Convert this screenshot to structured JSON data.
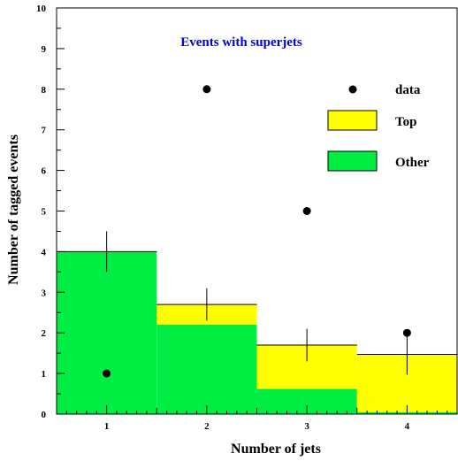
{
  "chart_data": {
    "type": "bar",
    "title": "Events with superjets",
    "xlabel": "Number of jets",
    "ylabel": "Number of tagged events",
    "xlim": [
      0.5,
      4.5
    ],
    "ylim": [
      0,
      10
    ],
    "categories": [
      "1",
      "2",
      "3",
      "4"
    ],
    "y_ticks": [
      "0",
      "1",
      "2",
      "3",
      "4",
      "5",
      "6",
      "7",
      "8",
      "9",
      "10"
    ],
    "series": [
      {
        "name": "Other",
        "type": "stacked-histogram",
        "values": [
          4.0,
          2.2,
          0.62,
          0.05
        ]
      },
      {
        "name": "Top",
        "type": "stacked-histogram",
        "values": [
          0.0,
          0.5,
          1.08,
          1.42
        ]
      },
      {
        "name": "data",
        "type": "scatter",
        "values": [
          1,
          8,
          5,
          2
        ]
      }
    ],
    "mc_total_error": [
      {
        "x": 1,
        "y": 4.0,
        "low": 3.5,
        "high": 4.5
      },
      {
        "x": 2,
        "y": 2.7,
        "low": 2.3,
        "high": 3.1
      },
      {
        "x": 3,
        "y": 1.7,
        "low": 1.3,
        "high": 2.1
      },
      {
        "x": 4,
        "y": 1.47,
        "low": 0.97,
        "high": 1.97
      }
    ],
    "legend": {
      "placement": "top-right",
      "entries": [
        {
          "label": "data",
          "marker": "point"
        },
        {
          "label": "Top",
          "marker": "box"
        },
        {
          "label": "Other",
          "marker": "box"
        }
      ]
    },
    "colors": {
      "other": "#00ee44",
      "top": "#ffff00",
      "title": "#0000dd",
      "data": "#000000"
    },
    "grid": false
  }
}
